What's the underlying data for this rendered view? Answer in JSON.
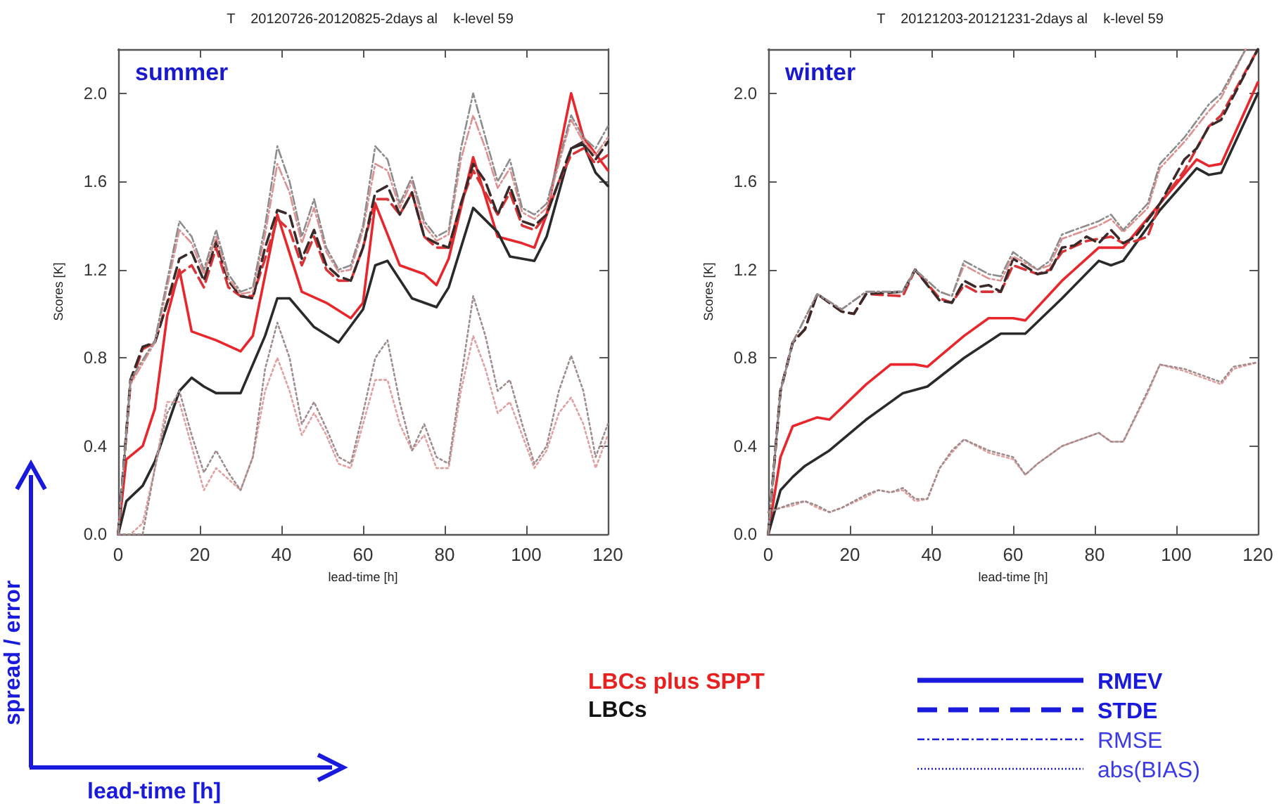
{
  "chart_data": [
    {
      "type": "line",
      "title": "T    20120726-20120825-2days al    k-level 59",
      "xlabel": "lead-time [h]",
      "ylabel": "Scores [K]",
      "annotations": [
        "summer"
      ],
      "xlim": [
        0,
        120
      ],
      "xticks": [
        0,
        20,
        40,
        60,
        80,
        100,
        120
      ],
      "ylim": [
        0,
        2.2
      ],
      "yticks": [
        {
          "value": 0,
          "label": "0.0"
        },
        {
          "value": 0.4,
          "label": "0.4"
        },
        {
          "value": 0.8,
          "label": "0.8"
        },
        {
          "value": 1.2,
          "label": "1.2"
        },
        {
          "value": 1.6,
          "label": "1.6"
        },
        {
          "value": 2.0,
          "label": "2.0"
        }
      ],
      "grid": false,
      "series": [
        {
          "color": "#e8262c",
          "line_style": "solid",
          "x": [
            0,
            2,
            6,
            9,
            12,
            15,
            18,
            24,
            30,
            33,
            39,
            45,
            51,
            57,
            60,
            63,
            69,
            75,
            78,
            81,
            87,
            93,
            99,
            102,
            105,
            111,
            114,
            120
          ],
          "values": [
            0,
            0.34,
            0.4,
            0.57,
            0.99,
            1.2,
            0.92,
            0.88,
            0.83,
            0.9,
            1.45,
            1.1,
            1.05,
            0.98,
            1.05,
            1.5,
            1.22,
            1.18,
            1.13,
            1.25,
            1.71,
            1.35,
            1.32,
            1.3,
            1.45,
            2.0,
            1.8,
            1.65
          ]
        },
        {
          "color": "#2a2a2a",
          "line_style": "solid",
          "x": [
            0,
            2,
            6,
            9,
            15,
            18,
            21,
            24,
            30,
            36,
            39,
            42,
            48,
            54,
            60,
            63,
            66,
            72,
            78,
            81,
            87,
            93,
            96,
            102,
            105,
            111,
            114,
            117,
            120
          ],
          "values": [
            0,
            0.15,
            0.22,
            0.33,
            0.65,
            0.71,
            0.67,
            0.64,
            0.64,
            0.9,
            1.07,
            1.07,
            0.94,
            0.87,
            1.02,
            1.22,
            1.24,
            1.07,
            1.03,
            1.12,
            1.48,
            1.37,
            1.26,
            1.24,
            1.35,
            1.75,
            1.77,
            1.64,
            1.58
          ]
        },
        {
          "color": "#d83438",
          "line_style": "dashed",
          "x": [
            0,
            3,
            6,
            9,
            12,
            15,
            18,
            21,
            24,
            27,
            30,
            33,
            36,
            39,
            42,
            45,
            48,
            51,
            54,
            57,
            60,
            63,
            66,
            69,
            72,
            75,
            78,
            81,
            84,
            87,
            90,
            93,
            96,
            99,
            102,
            105,
            108,
            111,
            114,
            117,
            120
          ],
          "values": [
            0,
            0.68,
            0.84,
            0.87,
            1.05,
            1.18,
            1.22,
            1.12,
            1.3,
            1.12,
            1.08,
            1.08,
            1.25,
            1.43,
            1.38,
            1.22,
            1.35,
            1.2,
            1.15,
            1.15,
            1.3,
            1.52,
            1.52,
            1.45,
            1.55,
            1.35,
            1.3,
            1.3,
            1.5,
            1.65,
            1.55,
            1.45,
            1.55,
            1.4,
            1.38,
            1.45,
            1.6,
            1.72,
            1.75,
            1.68,
            1.72
          ]
        },
        {
          "color": "#3a2a2a",
          "line_style": "dashed",
          "x": [
            0,
            3,
            6,
            9,
            12,
            15,
            18,
            21,
            24,
            27,
            30,
            33,
            36,
            39,
            42,
            45,
            48,
            51,
            54,
            57,
            60,
            63,
            66,
            69,
            72,
            75,
            78,
            81,
            84,
            87,
            90,
            93,
            96,
            99,
            102,
            105,
            108,
            111,
            114,
            117,
            120
          ],
          "values": [
            0,
            0.7,
            0.85,
            0.87,
            1.05,
            1.25,
            1.28,
            1.15,
            1.33,
            1.15,
            1.08,
            1.07,
            1.3,
            1.47,
            1.45,
            1.25,
            1.38,
            1.22,
            1.17,
            1.15,
            1.3,
            1.55,
            1.58,
            1.45,
            1.55,
            1.35,
            1.32,
            1.3,
            1.5,
            1.68,
            1.6,
            1.45,
            1.58,
            1.42,
            1.4,
            1.45,
            1.6,
            1.75,
            1.78,
            1.7,
            1.78
          ]
        },
        {
          "color": "#dc9090",
          "line_style": "dashdot",
          "x": [
            0,
            3,
            9,
            12,
            15,
            18,
            21,
            24,
            27,
            30,
            33,
            36,
            39,
            42,
            45,
            48,
            51,
            54,
            57,
            60,
            63,
            66,
            69,
            72,
            75,
            78,
            81,
            84,
            87,
            90,
            93,
            96,
            99,
            102,
            105,
            108,
            111,
            114,
            117,
            120
          ],
          "values": [
            0,
            0.68,
            0.87,
            1.12,
            1.38,
            1.32,
            1.18,
            1.35,
            1.16,
            1.09,
            1.1,
            1.36,
            1.68,
            1.55,
            1.32,
            1.48,
            1.28,
            1.19,
            1.2,
            1.38,
            1.68,
            1.65,
            1.48,
            1.6,
            1.4,
            1.33,
            1.36,
            1.7,
            1.9,
            1.75,
            1.57,
            1.66,
            1.46,
            1.43,
            1.48,
            1.68,
            1.88,
            1.78,
            1.72,
            1.8
          ]
        },
        {
          "color": "#8c8c8c",
          "line_style": "dashdot",
          "x": [
            0,
            3,
            9,
            12,
            15,
            18,
            21,
            24,
            27,
            30,
            33,
            36,
            39,
            42,
            45,
            48,
            51,
            54,
            57,
            60,
            63,
            66,
            69,
            72,
            75,
            78,
            81,
            84,
            87,
            90,
            93,
            96,
            99,
            102,
            105,
            108,
            111,
            114,
            117,
            120
          ],
          "values": [
            0,
            0.7,
            0.88,
            1.15,
            1.42,
            1.35,
            1.2,
            1.38,
            1.18,
            1.1,
            1.12,
            1.4,
            1.76,
            1.6,
            1.35,
            1.52,
            1.3,
            1.2,
            1.22,
            1.4,
            1.76,
            1.7,
            1.5,
            1.62,
            1.42,
            1.35,
            1.38,
            1.75,
            2.0,
            1.8,
            1.6,
            1.7,
            1.48,
            1.45,
            1.5,
            1.7,
            1.9,
            1.8,
            1.75,
            1.85
          ]
        },
        {
          "color": "#e0a0a0",
          "line_style": "dotted",
          "x": [
            0,
            3,
            6,
            9,
            12,
            15,
            18,
            21,
            24,
            27,
            30,
            33,
            36,
            39,
            42,
            45,
            48,
            51,
            54,
            57,
            60,
            63,
            66,
            69,
            72,
            75,
            78,
            81,
            84,
            87,
            90,
            93,
            96,
            99,
            102,
            105,
            108,
            111,
            114,
            117,
            120
          ],
          "values": [
            0,
            0,
            0.05,
            0.3,
            0.6,
            0.6,
            0.4,
            0.2,
            0.3,
            0.25,
            0.2,
            0.35,
            0.65,
            0.8,
            0.65,
            0.45,
            0.55,
            0.45,
            0.32,
            0.3,
            0.5,
            0.7,
            0.7,
            0.5,
            0.38,
            0.45,
            0.3,
            0.3,
            0.65,
            0.9,
            0.75,
            0.55,
            0.6,
            0.45,
            0.3,
            0.38,
            0.55,
            0.62,
            0.5,
            0.3,
            0.45
          ]
        },
        {
          "color": "#a08c8c",
          "line_style": "dotted",
          "x": [
            0,
            6,
            9,
            12,
            15,
            18,
            21,
            24,
            27,
            30,
            33,
            36,
            39,
            42,
            45,
            48,
            51,
            54,
            57,
            60,
            63,
            66,
            69,
            72,
            75,
            78,
            81,
            84,
            87,
            90,
            93,
            96,
            99,
            102,
            105,
            108,
            111,
            114,
            117,
            120
          ],
          "values": [
            0,
            0,
            0.3,
            0.55,
            0.65,
            0.45,
            0.28,
            0.38,
            0.28,
            0.2,
            0.35,
            0.75,
            0.96,
            0.8,
            0.5,
            0.6,
            0.48,
            0.35,
            0.32,
            0.55,
            0.8,
            0.88,
            0.6,
            0.38,
            0.5,
            0.35,
            0.32,
            0.7,
            1.08,
            0.9,
            0.65,
            0.7,
            0.5,
            0.32,
            0.4,
            0.65,
            0.81,
            0.65,
            0.35,
            0.5
          ]
        }
      ]
    },
    {
      "type": "line",
      "title": "T    20121203-20121231-2days al    k-level 59",
      "xlabel": "lead-time [h]",
      "ylabel": "Scores [K]",
      "annotations": [
        "winter"
      ],
      "xlim": [
        0,
        120
      ],
      "xticks": [
        0,
        20,
        40,
        60,
        80,
        100,
        120
      ],
      "ylim": [
        0,
        2.2
      ],
      "yticks": [
        {
          "value": 0,
          "label": "0.0"
        },
        {
          "value": 0.4,
          "label": "0.4"
        },
        {
          "value": 0.8,
          "label": "0.8"
        },
        {
          "value": 1.2,
          "label": "1.2"
        },
        {
          "value": 1.6,
          "label": "1.6"
        },
        {
          "value": 2.0,
          "label": "2.0"
        }
      ],
      "grid": false,
      "series": [
        {
          "color": "#e8262c",
          "line_style": "solid",
          "x": [
            0,
            3,
            6,
            12,
            15,
            24,
            30,
            36,
            39,
            48,
            54,
            60,
            63,
            72,
            81,
            87,
            96,
            105,
            108,
            111,
            120
          ],
          "values": [
            0,
            0.35,
            0.49,
            0.53,
            0.52,
            0.68,
            0.77,
            0.77,
            0.76,
            0.9,
            0.98,
            0.98,
            0.97,
            1.15,
            1.3,
            1.3,
            1.5,
            1.7,
            1.67,
            1.68,
            2.05
          ]
        },
        {
          "color": "#2a2a2a",
          "line_style": "solid",
          "x": [
            0,
            3,
            6,
            9,
            15,
            24,
            33,
            39,
            48,
            57,
            63,
            72,
            81,
            84,
            87,
            96,
            105,
            108,
            111,
            120
          ],
          "values": [
            0,
            0.2,
            0.26,
            0.31,
            0.38,
            0.52,
            0.64,
            0.67,
            0.8,
            0.91,
            0.91,
            1.07,
            1.24,
            1.22,
            1.24,
            1.47,
            1.66,
            1.63,
            1.64,
            2.0
          ]
        },
        {
          "color": "#d83438",
          "line_style": "dashed",
          "x": [
            0,
            3,
            6,
            9,
            12,
            18,
            21,
            24,
            33,
            36,
            42,
            45,
            48,
            51,
            54,
            57,
            60,
            66,
            69,
            72,
            78,
            84,
            87,
            90,
            93,
            96,
            102,
            108,
            111,
            120
          ],
          "values": [
            0,
            0.65,
            0.87,
            0.93,
            1.09,
            1.01,
            1.0,
            1.09,
            1.08,
            1.2,
            1.07,
            1.05,
            1.13,
            1.1,
            1.1,
            1.1,
            1.22,
            1.18,
            1.2,
            1.28,
            1.33,
            1.35,
            1.32,
            1.33,
            1.35,
            1.5,
            1.65,
            1.85,
            1.9,
            2.2
          ]
        },
        {
          "color": "#3a2a2a",
          "line_style": "dashed",
          "x": [
            0,
            3,
            6,
            9,
            12,
            18,
            21,
            24,
            33,
            36,
            42,
            45,
            48,
            51,
            54,
            57,
            60,
            66,
            69,
            72,
            75,
            78,
            81,
            84,
            87,
            90,
            96,
            102,
            105,
            108,
            111,
            120
          ],
          "values": [
            0,
            0.65,
            0.87,
            0.93,
            1.09,
            1.01,
            1.0,
            1.09,
            1.1,
            1.2,
            1.06,
            1.05,
            1.15,
            1.12,
            1.13,
            1.1,
            1.25,
            1.18,
            1.19,
            1.3,
            1.31,
            1.35,
            1.32,
            1.38,
            1.32,
            1.35,
            1.5,
            1.7,
            1.75,
            1.85,
            1.88,
            2.2
          ]
        },
        {
          "color": "#dc9090",
          "line_style": "dashdot",
          "x": [
            0,
            3,
            6,
            12,
            18,
            24,
            33,
            36,
            42,
            45,
            48,
            54,
            57,
            60,
            66,
            69,
            72,
            78,
            81,
            84,
            87,
            93,
            96,
            102,
            108,
            111,
            117
          ],
          "values": [
            0,
            0.65,
            0.87,
            1.09,
            1.02,
            1.1,
            1.1,
            1.2,
            1.1,
            1.08,
            1.22,
            1.16,
            1.15,
            1.26,
            1.2,
            1.22,
            1.34,
            1.38,
            1.4,
            1.43,
            1.37,
            1.48,
            1.66,
            1.78,
            1.92,
            1.98,
            2.2
          ]
        },
        {
          "color": "#8c8c8c",
          "line_style": "dashdot",
          "x": [
            0,
            3,
            6,
            12,
            18,
            24,
            33,
            36,
            42,
            45,
            48,
            54,
            57,
            60,
            66,
            69,
            72,
            78,
            81,
            84,
            87,
            93,
            96,
            102,
            108,
            111,
            117
          ],
          "values": [
            0,
            0.65,
            0.87,
            1.09,
            1.02,
            1.1,
            1.1,
            1.2,
            1.1,
            1.08,
            1.24,
            1.18,
            1.17,
            1.28,
            1.2,
            1.24,
            1.36,
            1.4,
            1.42,
            1.45,
            1.38,
            1.5,
            1.68,
            1.8,
            1.95,
            2.0,
            2.2
          ]
        },
        {
          "color": "#e0a0a0",
          "line_style": "dotted",
          "x": [
            0,
            3,
            6,
            9,
            12,
            15,
            18,
            24,
            27,
            30,
            33,
            36,
            39,
            42,
            45,
            48,
            54,
            60,
            63,
            66,
            72,
            78,
            81,
            84,
            87,
            93,
            96,
            102,
            108,
            111,
            114,
            120
          ],
          "values": [
            0.1,
            0.12,
            0.13,
            0.15,
            0.12,
            0.1,
            0.12,
            0.17,
            0.2,
            0.19,
            0.2,
            0.15,
            0.16,
            0.3,
            0.37,
            0.43,
            0.37,
            0.34,
            0.27,
            0.32,
            0.4,
            0.44,
            0.46,
            0.42,
            0.42,
            0.64,
            0.77,
            0.74,
            0.7,
            0.68,
            0.75,
            0.78
          ]
        },
        {
          "color": "#a08c8c",
          "line_style": "dotted",
          "x": [
            0,
            3,
            6,
            9,
            12,
            15,
            18,
            24,
            27,
            30,
            33,
            36,
            39,
            42,
            45,
            48,
            54,
            60,
            63,
            66,
            72,
            78,
            81,
            84,
            87,
            93,
            96,
            102,
            108,
            111,
            114,
            120
          ],
          "values": [
            0.1,
            0.12,
            0.14,
            0.15,
            0.13,
            0.1,
            0.12,
            0.18,
            0.2,
            0.19,
            0.21,
            0.16,
            0.16,
            0.3,
            0.38,
            0.43,
            0.38,
            0.35,
            0.27,
            0.32,
            0.4,
            0.44,
            0.46,
            0.42,
            0.42,
            0.65,
            0.77,
            0.75,
            0.71,
            0.69,
            0.76,
            0.78
          ]
        }
      ]
    },
    {
      "type": "other",
      "annotations": [
        "LBCs plus SPPT",
        "LBCs",
        "RMEV",
        "STDE",
        "RMSE",
        "abs(BIAS)",
        "spread / error",
        "lead-time [h]"
      ]
    }
  ]
}
